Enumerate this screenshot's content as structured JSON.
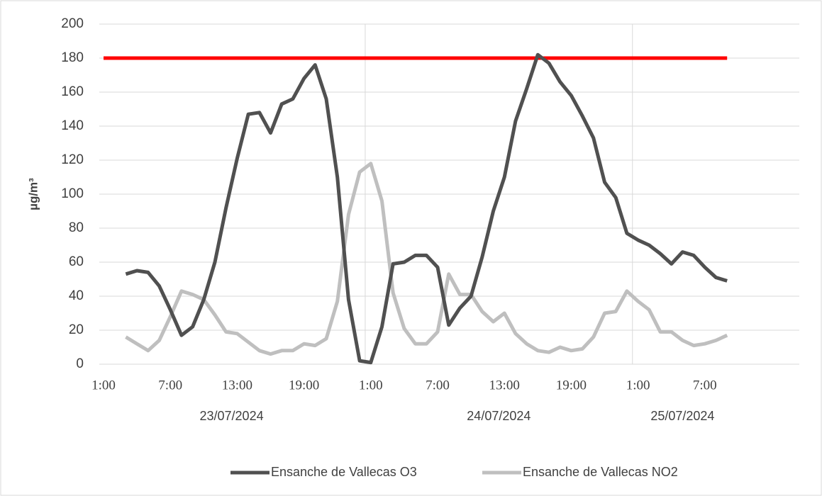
{
  "chart_data": {
    "type": "line",
    "y_label": "µg/m³",
    "categories": [
      "1:00",
      null,
      null,
      null,
      null,
      null,
      "7:00",
      null,
      null,
      null,
      null,
      null,
      "13:00",
      null,
      null,
      null,
      null,
      null,
      "19:00",
      null,
      null,
      null,
      null,
      null,
      "1:00",
      null,
      null,
      null,
      null,
      null,
      "7:00",
      null,
      null,
      null,
      null,
      null,
      "13:00",
      null,
      null,
      null,
      null,
      null,
      "19:00",
      null,
      null,
      null,
      null,
      null,
      "1:00",
      null,
      null,
      null,
      null,
      null,
      "7:00",
      null,
      null
    ],
    "x_groups": [
      "23/07/2024",
      "24/07/2024",
      "25/07/2024"
    ],
    "series": [
      {
        "name": "Ensanche de Vallecas O3",
        "color": "#505050",
        "values": [
          null,
          null,
          53,
          55,
          54,
          46,
          32,
          17,
          22,
          38,
          60,
          92,
          121,
          147,
          148,
          136,
          153,
          156,
          168,
          176,
          156,
          110,
          38,
          2,
          1,
          22,
          59,
          60,
          64,
          64,
          57,
          23,
          33,
          40,
          63,
          90,
          110,
          143,
          162,
          182,
          177,
          166,
          158,
          146,
          133,
          107,
          98,
          77,
          73,
          70,
          65,
          59,
          66,
          64,
          57,
          51,
          49
        ]
      },
      {
        "name": "Ensanche de Vallecas NO2",
        "color": "#bfbfbf",
        "values": [
          null,
          null,
          16,
          12,
          8,
          14,
          28,
          43,
          41,
          38,
          29,
          19,
          18,
          13,
          8,
          6,
          8,
          8,
          12,
          11,
          15,
          37,
          88,
          113,
          118,
          96,
          42,
          21,
          12,
          12,
          19,
          53,
          41,
          41,
          31,
          25,
          30,
          18,
          12,
          8,
          7,
          10,
          8,
          9,
          16,
          30,
          31,
          43,
          37,
          32,
          19,
          19,
          14,
          11,
          12,
          14,
          17
        ]
      }
    ],
    "threshold": {
      "value": 180,
      "color": "#ff0000"
    },
    "ylim": [
      0,
      200
    ],
    "yticks": [
      0,
      20,
      40,
      60,
      80,
      100,
      120,
      140,
      160,
      180,
      200
    ],
    "grid": true,
    "legend": "bottom"
  }
}
